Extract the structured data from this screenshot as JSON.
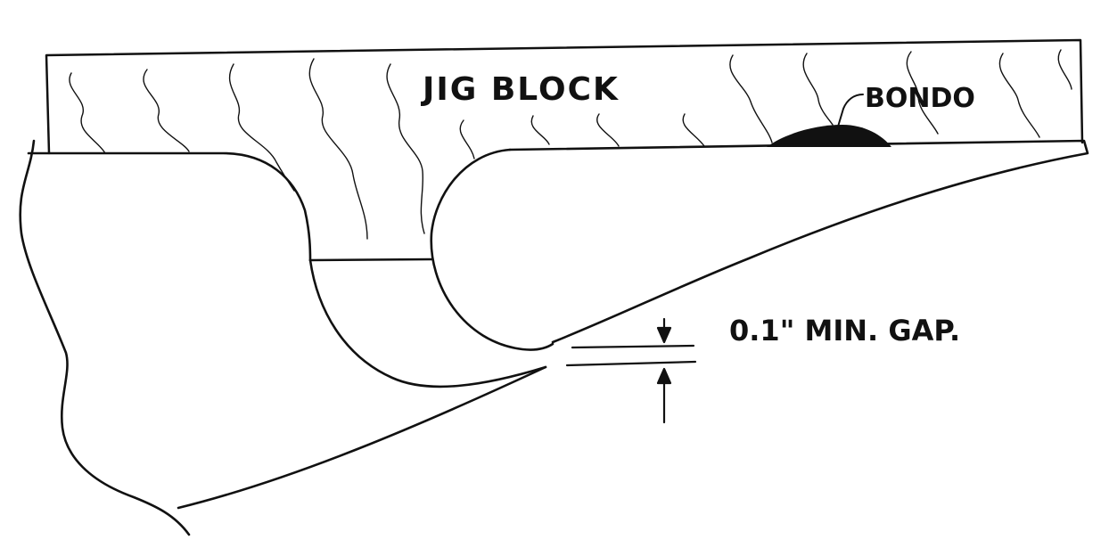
{
  "labels": {
    "jig_block": "JIG BLOCK",
    "bondo": "BONDO",
    "gap": "0.1\" MIN. GAP."
  },
  "colors": {
    "ink": "#111111",
    "paper": "#ffffff"
  }
}
